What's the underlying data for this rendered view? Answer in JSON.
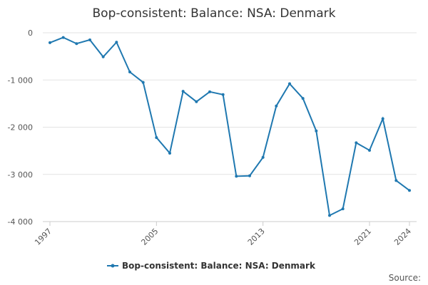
{
  "chart_data": {
    "type": "line",
    "title": "Bop-consistent: Balance: NSA: Denmark",
    "x": [
      1997,
      1998,
      1999,
      2000,
      2001,
      2002,
      2003,
      2004,
      2005,
      2006,
      2007,
      2008,
      2009,
      2010,
      2011,
      2012,
      2013,
      2014,
      2015,
      2016,
      2017,
      2018,
      2019,
      2020,
      2021,
      2022,
      2023,
      2024
    ],
    "xlim": [
      1997,
      2024
    ],
    "xticks": [
      1997,
      2005,
      2013,
      2021,
      2024
    ],
    "series": [
      {
        "name": "Bop-consistent: Balance: NSA: Denmark",
        "color": "#1f78b0",
        "values": [
          -210,
          -100,
          -230,
          -150,
          -510,
          -200,
          -830,
          -1050,
          -2220,
          -2550,
          -1240,
          -1460,
          -1250,
          -1310,
          -3040,
          -3030,
          -2640,
          -1550,
          -1080,
          -1390,
          -2080,
          -3870,
          -3730,
          -2330,
          -2490,
          -1820,
          -3130,
          -3340
        ]
      }
    ],
    "ylim": [
      -4000,
      0
    ],
    "yticks": [
      {
        "value": -4000,
        "label": "-4 000"
      },
      {
        "value": -3000,
        "label": "-3 000"
      },
      {
        "value": -2000,
        "label": "-2 000"
      },
      {
        "value": -1000,
        "label": "-1 000"
      },
      0
    ],
    "grid": true,
    "legend": "bottom",
    "source": "Source:"
  }
}
